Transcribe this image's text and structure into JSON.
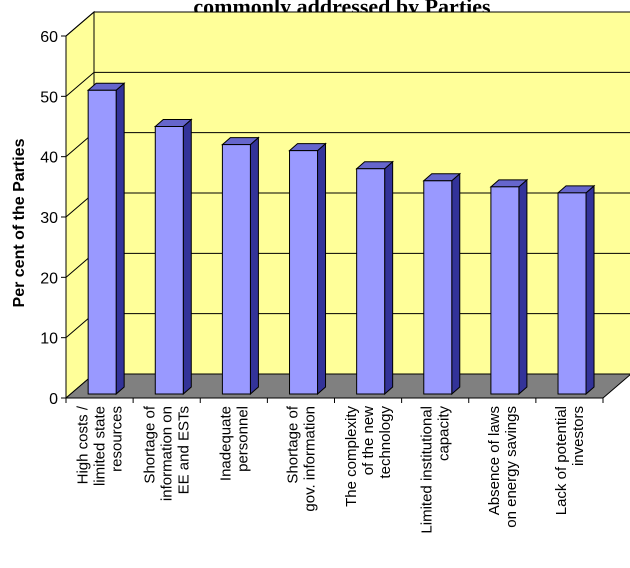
{
  "chart_data": {
    "type": "bar",
    "title": "commonly addressed by Parties",
    "xlabel": "",
    "ylabel": "Per cent of the Parties",
    "ylim": [
      0,
      60
    ],
    "yticks": [
      0,
      10,
      20,
      30,
      40,
      50,
      60
    ],
    "grid": true,
    "categories": [
      [
        "High costs /",
        "limited state",
        "resources"
      ],
      [
        "Shortage of",
        "information on",
        "EE and ESTs"
      ],
      [
        "Inadequate",
        "personnel"
      ],
      [
        "Shortage of",
        "gov. information"
      ],
      [
        "The complexity",
        "of the new",
        "technology"
      ],
      [
        "Limited institutional",
        "capacity"
      ],
      [
        "Absence of laws",
        "on energy savings"
      ],
      [
        "Lack of potential",
        "investors"
      ]
    ],
    "values": [
      51,
      45,
      42,
      41,
      38,
      36,
      35,
      34
    ],
    "colors": {
      "wall": "#ffff99",
      "floor": "#808080",
      "bar_front": "#9999ff",
      "bar_side": "#333399",
      "bar_top": "#6666cc",
      "gridline": "#000000"
    }
  }
}
